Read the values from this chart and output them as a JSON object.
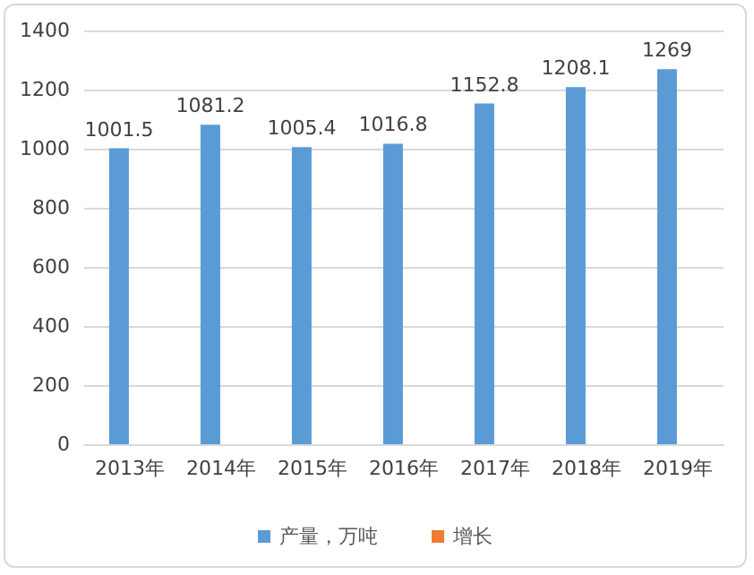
{
  "chart_data": {
    "type": "bar",
    "categories": [
      "2013年",
      "2014年",
      "2015年",
      "2016年",
      "2017年",
      "2018年",
      "2019年"
    ],
    "series": [
      {
        "name": "产量，万吨",
        "color": "#5b9bd5",
        "values": [
          1001.5,
          1081.2,
          1005.4,
          1016.8,
          1152.8,
          1208.1,
          1269
        ]
      },
      {
        "name": "增长",
        "color": "#ed7d31",
        "values": [
          null,
          null,
          null,
          null,
          null,
          null,
          null
        ]
      }
    ],
    "ylim": [
      0,
      1400
    ],
    "yticks": [
      0,
      200,
      400,
      600,
      800,
      1000,
      1200,
      1400
    ],
    "grid": "y",
    "legend": "bottom",
    "data_labels": true
  }
}
